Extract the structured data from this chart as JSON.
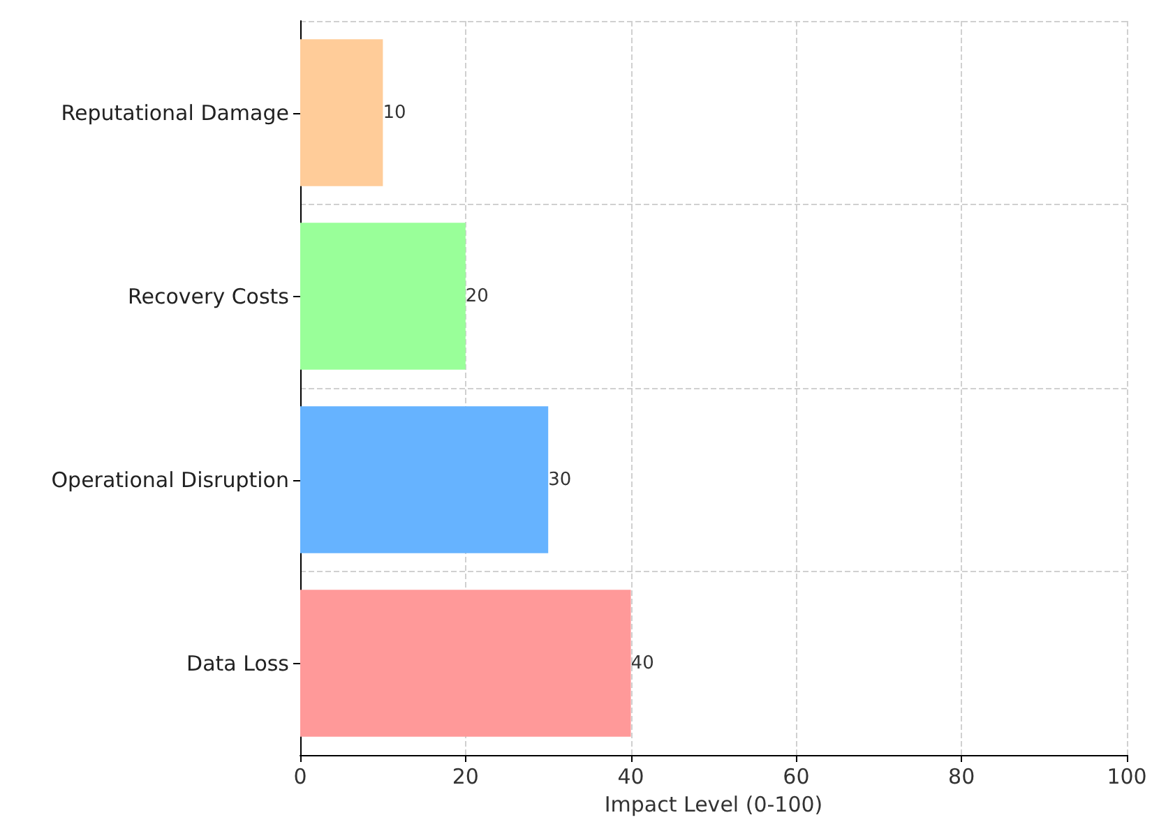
{
  "chart_data": {
    "type": "bar",
    "orientation": "horizontal",
    "xlabel": "Impact Level (0-100)",
    "categories": [
      "Reputational Damage",
      "Recovery Costs",
      "Operational Disruption",
      "Data Loss"
    ],
    "values": [
      10,
      20,
      30,
      40
    ],
    "colors": [
      "#ffcc99",
      "#99ff99",
      "#66b3ff",
      "#ff9999"
    ],
    "xlim": [
      0,
      100
    ],
    "xticks": [
      0,
      20,
      40,
      60,
      80,
      100
    ],
    "grid": true,
    "data_labels": true
  }
}
